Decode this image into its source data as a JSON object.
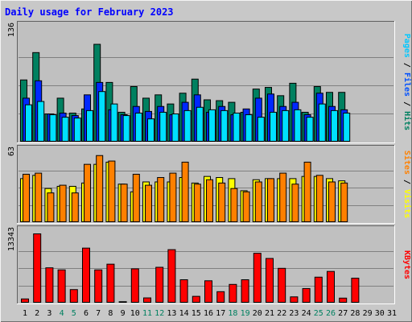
{
  "title": "Daily usage for February 2023",
  "chart_data": [
    {
      "type": "bar",
      "panel": "pages-files-hits",
      "y_max_label": "136",
      "ylim": [
        0,
        136
      ],
      "right_label": [
        {
          "text": "Pages",
          "color": "#00c8ff"
        },
        {
          "text": " / ",
          "color": "#000000"
        },
        {
          "text": "Files",
          "color": "#0050ff"
        },
        {
          "text": " / ",
          "color": "#000000"
        },
        {
          "text": "Hits",
          "color": "#008060"
        }
      ],
      "series": [
        {
          "name": "Hits",
          "color": "#008060",
          "values": [
            75,
            108,
            34,
            53,
            35,
            40,
            118,
            72,
            36,
            67,
            53,
            57,
            46,
            59,
            76,
            51,
            50,
            48,
            36,
            64,
            66,
            56,
            71,
            36,
            67,
            60,
            60,
            0
          ]
        },
        {
          "name": "Files",
          "color": "#0028ff",
          "values": [
            53,
            74,
            34,
            35,
            32,
            57,
            72,
            39,
            33,
            43,
            37,
            43,
            33,
            48,
            57,
            36,
            43,
            33,
            40,
            53,
            58,
            43,
            48,
            33,
            59,
            43,
            39,
            0
          ]
        },
        {
          "name": "Pages",
          "color": "#00e0ff",
          "values": [
            45,
            49,
            33,
            30,
            29,
            38,
            61,
            46,
            32,
            35,
            28,
            36,
            34,
            38,
            42,
            39,
            38,
            35,
            33,
            30,
            36,
            38,
            39,
            30,
            46,
            38,
            35,
            0
          ]
        }
      ]
    },
    {
      "type": "bar",
      "panel": "visits-sites",
      "y_max_label": "63",
      "ylim": [
        0,
        63
      ],
      "right_label": [
        {
          "text": "Sites",
          "color": "#ff8000"
        },
        {
          "text": " / ",
          "color": "#000000"
        },
        {
          "text": "Visits",
          "color": "#ffff00"
        }
      ],
      "series": [
        {
          "name": "Visits",
          "color": "#ffff00",
          "values": [
            40,
            43,
            31,
            33,
            33,
            36,
            53,
            55,
            35,
            28,
            37,
            37,
            37,
            41,
            36,
            42,
            41,
            40,
            29,
            39,
            40,
            40,
            40,
            42,
            42,
            40,
            38,
            0
          ]
        },
        {
          "name": "Sites",
          "color": "#ff8000",
          "values": [
            44,
            45,
            27,
            34,
            27,
            53,
            61,
            56,
            35,
            44,
            34,
            41,
            45,
            55,
            35,
            39,
            36,
            31,
            28,
            37,
            40,
            45,
            35,
            55,
            43,
            37,
            36,
            0
          ]
        }
      ]
    },
    {
      "type": "bar",
      "panel": "kbytes",
      "y_max_label": "13343",
      "ylim": [
        0,
        13343
      ],
      "right_label": [
        {
          "text": "KBytes",
          "color": "#ff0000"
        }
      ],
      "series": [
        {
          "name": "KBytes",
          "color": "#ff0000",
          "values": [
            800,
            13343,
            6800,
            6400,
            2600,
            10600,
            6400,
            7500,
            270,
            6600,
            1000,
            6900,
            10300,
            4500,
            1300,
            4300,
            2200,
            3600,
            4500,
            9600,
            8600,
            6700,
            1200,
            2800,
            5000,
            6100,
            960,
            4800,
            0,
            0,
            0
          ]
        }
      ]
    }
  ],
  "x_axis": {
    "days": [
      "1",
      "2",
      "3",
      "4",
      "5",
      "6",
      "7",
      "8",
      "9",
      "10",
      "11",
      "12",
      "13",
      "14",
      "15",
      "16",
      "17",
      "18",
      "19",
      "20",
      "21",
      "22",
      "23",
      "24",
      "25",
      "26",
      "27",
      "28",
      "29",
      "30",
      "31"
    ],
    "weekend_days": [
      4,
      5,
      11,
      12,
      18,
      19,
      25,
      26
    ],
    "weekend_color": "#008060",
    "weekday_color": "#000000"
  }
}
